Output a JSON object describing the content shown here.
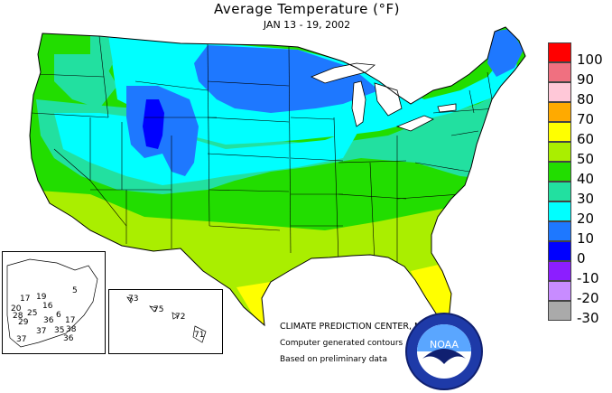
{
  "title": "Average Temperature (°F)",
  "subtitle": "JAN 13 - 19, 2002",
  "credits": {
    "center": "CLIMATE PREDICTION CENTER, NOAA",
    "contours": "Computer generated contours",
    "preliminary": "Based on preliminary data"
  },
  "logo": {
    "text": "NOAA",
    "icon": "noaa-seagull-logo"
  },
  "legend": [
    {
      "label": "100",
      "color": "#ff0000"
    },
    {
      "label": "90",
      "color": "#f07080"
    },
    {
      "label": "80",
      "color": "#ffc8d8"
    },
    {
      "label": "70",
      "color": "#ffaa00"
    },
    {
      "label": "60",
      "color": "#ffff00"
    },
    {
      "label": "50",
      "color": "#aaee00"
    },
    {
      "label": "40",
      "color": "#22dd00"
    },
    {
      "label": "30",
      "color": "#22e0a0"
    },
    {
      "label": "20",
      "color": "#00ffff"
    },
    {
      "label": "10",
      "color": "#1e78ff"
    },
    {
      "label": "0",
      "color": "#0000ff"
    },
    {
      "label": "-10",
      "color": "#8c1eff"
    },
    {
      "label": "-20",
      "color": "#c88cff"
    },
    {
      "label": "-30",
      "color": "#aaaaaa"
    }
  ],
  "alaska_stations": [
    "17",
    "19",
    "16",
    "25",
    "20",
    "28",
    "36",
    "6",
    "5",
    "29",
    "17",
    "37",
    "35",
    "38",
    "37",
    "36"
  ],
  "hawaii_stations": [
    "73",
    "75",
    "72",
    "71"
  ]
}
